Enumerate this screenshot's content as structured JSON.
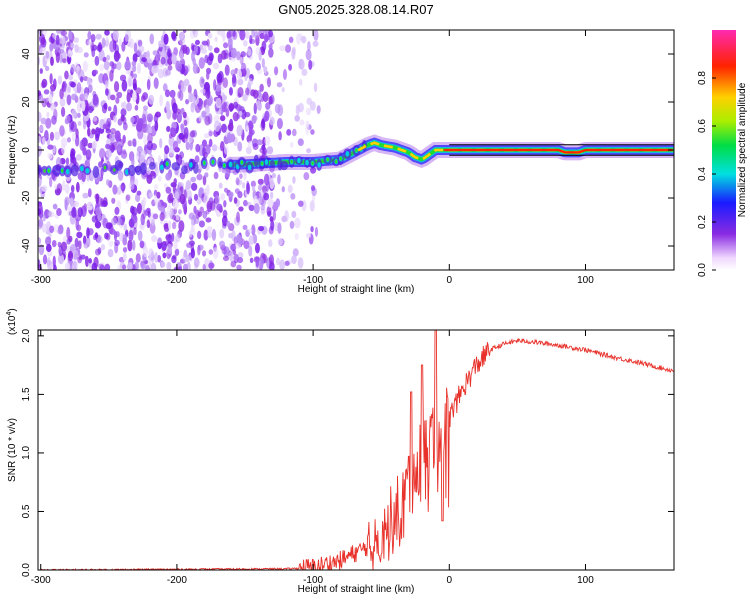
{
  "figure_title": "GN05.2025.328.08.14.R07",
  "chart_data": [
    {
      "type": "heatmap",
      "xlabel": "Height of straight line (km)",
      "ylabel": "Frequency (Hz)",
      "xlim": [
        -302,
        165
      ],
      "ylim": [
        -50,
        50
      ],
      "xticks": [
        -300,
        -200,
        -100,
        0,
        100
      ],
      "yticks": [
        -40,
        -20,
        0,
        20,
        40
      ],
      "colorbar": {
        "label": "Normalized spectral amplitude",
        "range": [
          0,
          1
        ],
        "ticks": [
          0,
          0.2,
          0.4,
          0.6,
          0.8
        ],
        "colormap": "rainbow (white-purple-blue-cyan-green-yellow-red-pink)"
      },
      "ridge_frequency_track": {
        "x": [
          -302,
          -250,
          -200,
          -150,
          -120,
          -100,
          -80,
          -70,
          -60,
          -55,
          -50,
          -40,
          -30,
          -25,
          -20,
          -15,
          -10,
          0,
          20,
          60,
          80,
          85,
          90,
          95,
          100,
          120,
          165
        ],
        "y": [
          -8,
          -8,
          -7,
          -6,
          -5,
          -5,
          -4,
          -1,
          2,
          3,
          2,
          1,
          -1,
          -3,
          -4,
          -2,
          0,
          0,
          0,
          0,
          0,
          -1,
          -1,
          -1,
          0,
          0,
          0
        ]
      },
      "noise_region_x": [
        -302,
        -100
      ],
      "grid": false
    },
    {
      "type": "line",
      "xlabel": "Height of straight line (km)",
      "ylabel": "SNR (10 * v/v)",
      "exponent_label": "(x10",
      "exponent_power": "4",
      "exponent_close": ")",
      "xlim": [
        -302,
        165
      ],
      "ylim": [
        0,
        2.05
      ],
      "xticks": [
        -300,
        -200,
        -100,
        0,
        100
      ],
      "yticks": [
        0.0,
        0.5,
        1.0,
        1.5,
        2.0
      ],
      "ytick_labels": [
        "0.0",
        "0.5",
        "1.0",
        "1.5",
        "2.0"
      ],
      "color": "#e8312a",
      "envelope": {
        "x": [
          -302,
          -120,
          -100,
          -80,
          -60,
          -50,
          -40,
          -30,
          -20,
          -10,
          0,
          10,
          20,
          30,
          40,
          50,
          60,
          80,
          100,
          120,
          140,
          165
        ],
        "y": [
          0.0,
          0.01,
          0.02,
          0.08,
          0.2,
          0.3,
          0.45,
          0.75,
          1.0,
          1.2,
          1.3,
          1.55,
          1.75,
          1.88,
          1.93,
          1.96,
          1.95,
          1.92,
          1.88,
          1.82,
          1.77,
          1.7
        ]
      },
      "spikes": [
        {
          "x": -28,
          "y": 1.52
        },
        {
          "x": -20,
          "y": 1.75
        },
        {
          "x": -10,
          "y": 2.05
        },
        {
          "x": -5,
          "y": 0.42
        }
      ],
      "grid": false
    }
  ]
}
